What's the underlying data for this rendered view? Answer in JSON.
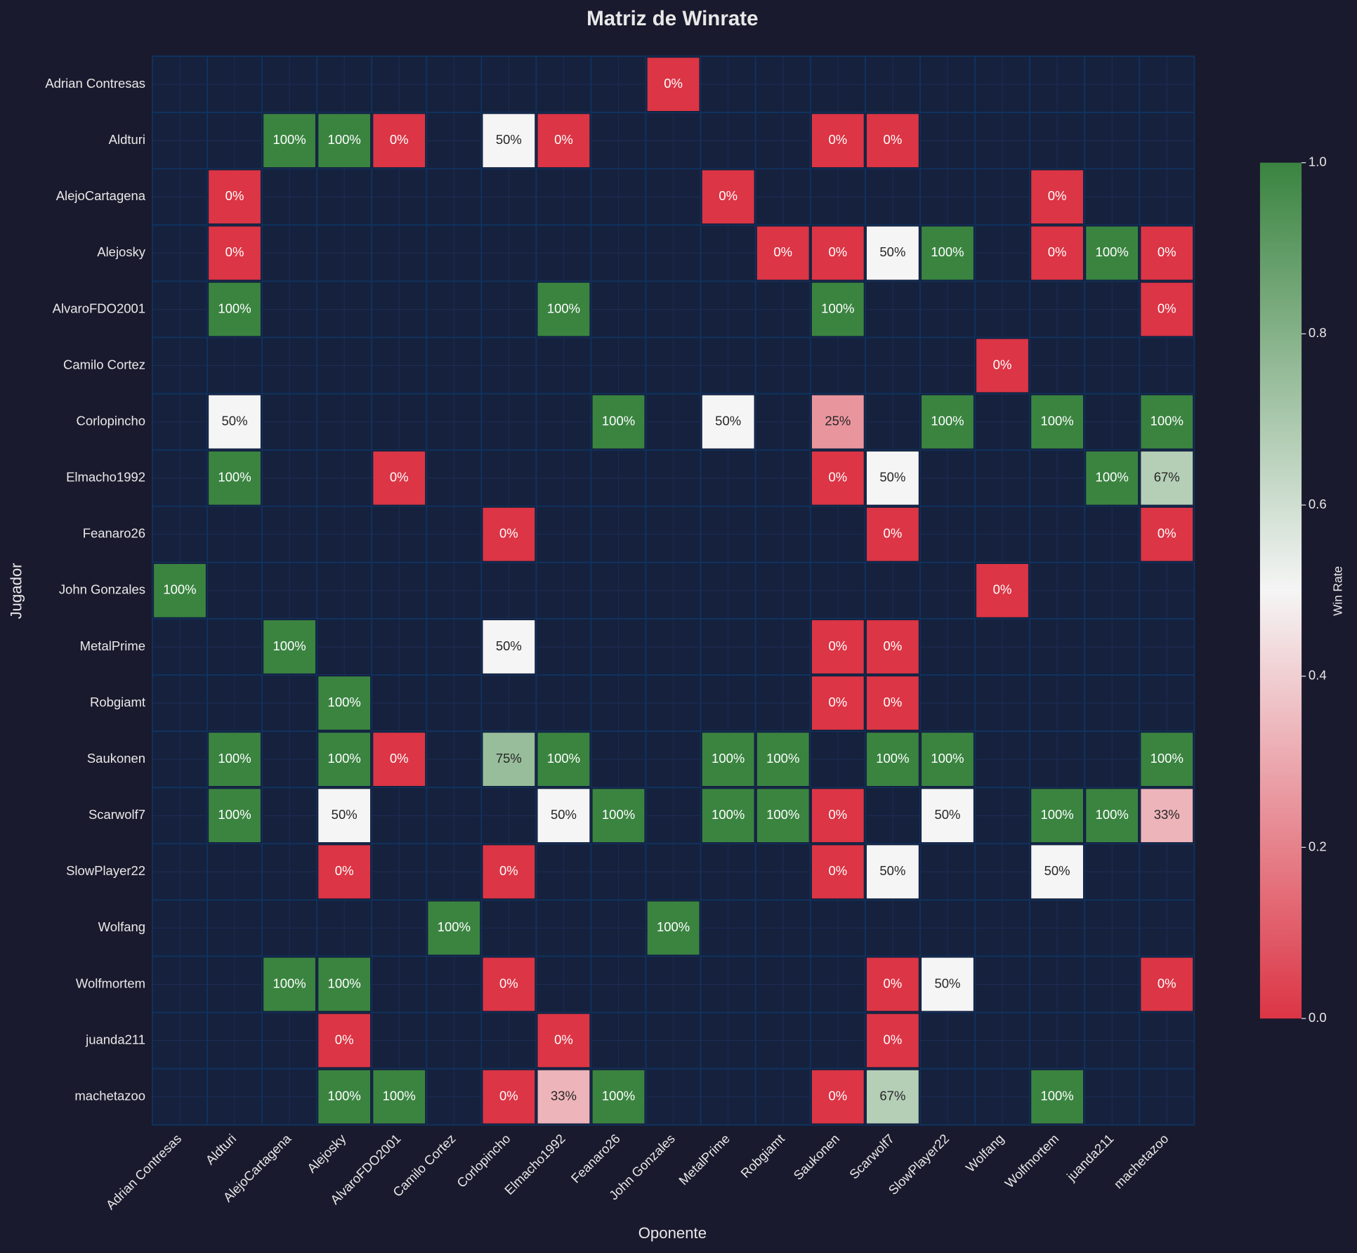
{
  "chart_data": {
    "type": "heatmap",
    "title": "Matriz de Winrate",
    "x_label": "Oponente",
    "y_label": "Jugador",
    "colorbar_label": "Win Rate",
    "rows": [
      "Adrian Contresas",
      "Aldturi",
      "AlejoCartagena",
      "Alejosky",
      "AlvaroFDO2001",
      "Camilo Cortez",
      "Corlopincho",
      "Elmacho1992",
      "Feanaro26",
      "John Gonzales",
      "MetalPrime",
      "Robgiamt",
      "Saukonen",
      "Scarwolf7",
      "SlowPlayer22",
      "Wolfang",
      "Wolfmortem",
      "juanda211",
      "machetazoo"
    ],
    "columns": [
      "Adrian Contresas",
      "Aldturi",
      "AlejoCartagena",
      "Alejosky",
      "AlvaroFDO2001",
      "Camilo Cortez",
      "Corlopincho",
      "Elmacho1992",
      "Feanaro26",
      "John Gonzales",
      "MetalPrime",
      "Robgiamt",
      "Saukonen",
      "Scarwolf7",
      "SlowPlayer22",
      "Wolfang",
      "Wolfmortem",
      "juanda211",
      "machetazoo"
    ],
    "values": [
      [
        null,
        null,
        null,
        null,
        null,
        null,
        null,
        null,
        null,
        0,
        null,
        null,
        null,
        null,
        null,
        null,
        null,
        null,
        null
      ],
      [
        null,
        null,
        1,
        1,
        0,
        null,
        0.5,
        0,
        null,
        null,
        null,
        null,
        0,
        0,
        null,
        null,
        null,
        null,
        null
      ],
      [
        null,
        0,
        null,
        null,
        null,
        null,
        null,
        null,
        null,
        null,
        0,
        null,
        null,
        null,
        null,
        null,
        0,
        null,
        null
      ],
      [
        null,
        0,
        null,
        null,
        null,
        null,
        null,
        null,
        null,
        null,
        null,
        0,
        0,
        0.5,
        1,
        null,
        0,
        1,
        0
      ],
      [
        null,
        1,
        null,
        null,
        null,
        null,
        null,
        1,
        null,
        null,
        null,
        null,
        1,
        null,
        null,
        null,
        null,
        null,
        0
      ],
      [
        null,
        null,
        null,
        null,
        null,
        null,
        null,
        null,
        null,
        null,
        null,
        null,
        null,
        null,
        null,
        0,
        null,
        null,
        null
      ],
      [
        null,
        0.5,
        null,
        null,
        null,
        null,
        null,
        null,
        1,
        null,
        0.5,
        null,
        0.25,
        null,
        1,
        null,
        1,
        null,
        1
      ],
      [
        null,
        1,
        null,
        null,
        0,
        null,
        null,
        null,
        null,
        null,
        null,
        null,
        0,
        0.5,
        null,
        null,
        null,
        1,
        0.67
      ],
      [
        null,
        null,
        null,
        null,
        null,
        null,
        0,
        null,
        null,
        null,
        null,
        null,
        null,
        0,
        null,
        null,
        null,
        null,
        0
      ],
      [
        1,
        null,
        null,
        null,
        null,
        null,
        null,
        null,
        null,
        null,
        null,
        null,
        null,
        null,
        null,
        0,
        null,
        null,
        null
      ],
      [
        null,
        null,
        1,
        null,
        null,
        null,
        0.5,
        null,
        null,
        null,
        null,
        null,
        0,
        0,
        null,
        null,
        null,
        null,
        null
      ],
      [
        null,
        null,
        null,
        1,
        null,
        null,
        null,
        null,
        null,
        null,
        null,
        null,
        0,
        0,
        null,
        null,
        null,
        null,
        null
      ],
      [
        null,
        1,
        null,
        1,
        0,
        null,
        0.75,
        1,
        null,
        null,
        1,
        1,
        null,
        1,
        1,
        null,
        null,
        null,
        1
      ],
      [
        null,
        1,
        null,
        0.5,
        null,
        null,
        null,
        0.5,
        1,
        null,
        1,
        1,
        0,
        null,
        0.5,
        null,
        1,
        1,
        0.33
      ],
      [
        null,
        null,
        null,
        0,
        null,
        null,
        0,
        null,
        null,
        null,
        null,
        null,
        0,
        0.5,
        null,
        null,
        0.5,
        null,
        null
      ],
      [
        null,
        null,
        null,
        null,
        null,
        1,
        null,
        null,
        null,
        1,
        null,
        null,
        null,
        null,
        null,
        null,
        null,
        null,
        null
      ],
      [
        null,
        null,
        1,
        1,
        null,
        null,
        0,
        null,
        null,
        null,
        null,
        null,
        null,
        0,
        0.5,
        null,
        null,
        null,
        0
      ],
      [
        null,
        null,
        null,
        0,
        null,
        null,
        null,
        0,
        null,
        null,
        null,
        null,
        null,
        0,
        null,
        null,
        null,
        null,
        null
      ],
      [
        null,
        null,
        null,
        1,
        1,
        null,
        0,
        0.33,
        1,
        null,
        null,
        null,
        0,
        0.67,
        null,
        null,
        1,
        null,
        null
      ]
    ],
    "value_labels": [
      [
        null,
        null,
        null,
        null,
        null,
        null,
        null,
        null,
        null,
        "0%",
        null,
        null,
        null,
        null,
        null,
        null,
        null,
        null,
        null
      ],
      [
        null,
        null,
        "100%",
        "100%",
        "0%",
        null,
        "50%",
        "0%",
        null,
        null,
        null,
        null,
        "0%",
        "0%",
        null,
        null,
        null,
        null,
        null
      ],
      [
        null,
        "0%",
        null,
        null,
        null,
        null,
        null,
        null,
        null,
        null,
        "0%",
        null,
        null,
        null,
        null,
        null,
        "0%",
        null,
        null
      ],
      [
        null,
        "0%",
        null,
        null,
        null,
        null,
        null,
        null,
        null,
        null,
        null,
        "0%",
        "0%",
        "50%",
        "100%",
        null,
        "0%",
        "100%",
        "0%"
      ],
      [
        null,
        "100%",
        null,
        null,
        null,
        null,
        null,
        "100%",
        null,
        null,
        null,
        null,
        "100%",
        null,
        null,
        null,
        null,
        null,
        "0%"
      ],
      [
        null,
        null,
        null,
        null,
        null,
        null,
        null,
        null,
        null,
        null,
        null,
        null,
        null,
        null,
        null,
        "0%",
        null,
        null,
        null
      ],
      [
        null,
        "50%",
        null,
        null,
        null,
        null,
        null,
        null,
        "100%",
        null,
        "50%",
        null,
        "25%",
        null,
        "100%",
        null,
        "100%",
        null,
        "100%"
      ],
      [
        null,
        "100%",
        null,
        null,
        "0%",
        null,
        null,
        null,
        null,
        null,
        null,
        null,
        "0%",
        "50%",
        null,
        null,
        null,
        "100%",
        "67%"
      ],
      [
        null,
        null,
        null,
        null,
        null,
        null,
        "0%",
        null,
        null,
        null,
        null,
        null,
        null,
        "0%",
        null,
        null,
        null,
        null,
        "0%"
      ],
      [
        "100%",
        null,
        null,
        null,
        null,
        null,
        null,
        null,
        null,
        null,
        null,
        null,
        null,
        null,
        null,
        "0%",
        null,
        null,
        null
      ],
      [
        null,
        null,
        "100%",
        null,
        null,
        null,
        "50%",
        null,
        null,
        null,
        null,
        null,
        "0%",
        "0%",
        null,
        null,
        null,
        null,
        null
      ],
      [
        null,
        null,
        null,
        "100%",
        null,
        null,
        null,
        null,
        null,
        null,
        null,
        null,
        "0%",
        "0%",
        null,
        null,
        null,
        null,
        null
      ],
      [
        null,
        "100%",
        null,
        "100%",
        "0%",
        null,
        "75%",
        "100%",
        null,
        null,
        "100%",
        "100%",
        null,
        "100%",
        "100%",
        null,
        null,
        null,
        "100%"
      ],
      [
        null,
        "100%",
        null,
        "50%",
        null,
        null,
        null,
        "50%",
        "100%",
        null,
        "100%",
        "100%",
        "0%",
        null,
        "50%",
        null,
        "100%",
        "100%",
        "33%"
      ],
      [
        null,
        null,
        null,
        "0%",
        null,
        null,
        "0%",
        null,
        null,
        null,
        null,
        null,
        "0%",
        "50%",
        null,
        null,
        "50%",
        null,
        null
      ],
      [
        null,
        null,
        null,
        null,
        null,
        "100%",
        null,
        null,
        null,
        "100%",
        null,
        null,
        null,
        null,
        null,
        null,
        null,
        null,
        null
      ],
      [
        null,
        null,
        "100%",
        "100%",
        null,
        null,
        "0%",
        null,
        null,
        null,
        null,
        null,
        null,
        "0%",
        "50%",
        null,
        null,
        null,
        "0%"
      ],
      [
        null,
        null,
        null,
        "0%",
        null,
        null,
        null,
        "0%",
        null,
        null,
        null,
        null,
        null,
        "0%",
        null,
        null,
        null,
        null,
        null
      ],
      [
        null,
        null,
        null,
        "100%",
        "100%",
        null,
        "0%",
        "33%",
        "100%",
        null,
        null,
        null,
        "0%",
        "67%",
        null,
        null,
        "100%",
        null,
        null
      ]
    ],
    "colormap": [
      "#dc3545",
      "#f5f5f5",
      "#3a8440"
    ],
    "clim": [
      0,
      1
    ],
    "cticks": [
      {
        "value": 0,
        "label": "0.0"
      },
      0.2,
      0.4,
      0.6,
      0.8,
      {
        "value": 1,
        "label": "1.0"
      }
    ]
  }
}
